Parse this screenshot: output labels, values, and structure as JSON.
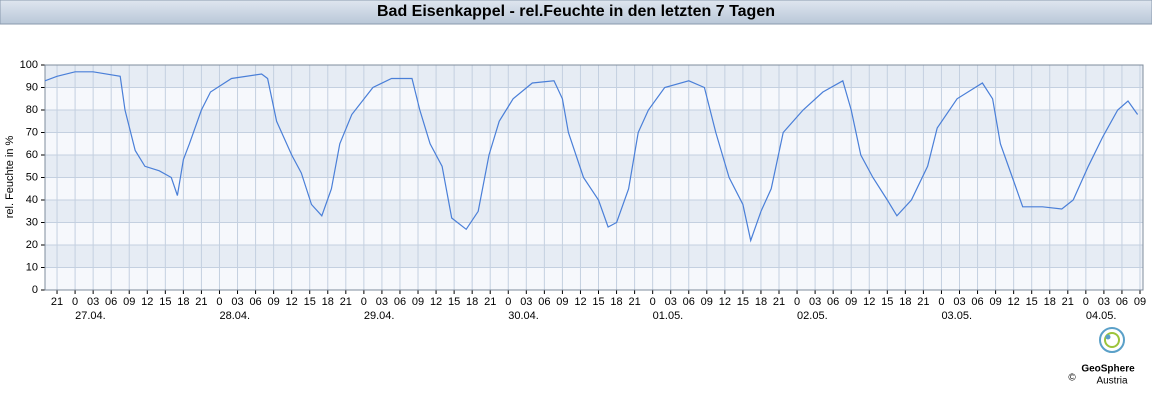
{
  "header": {
    "title": "Bad Eisenkappel - rel.Feuchte in den letzten 7 Tagen"
  },
  "chart_data": {
    "type": "line",
    "y_label": "rel. Feuchte in %",
    "xlim": [
      -5,
      177.5
    ],
    "ylim": [
      0,
      100
    ],
    "yticks": [
      0,
      10,
      20,
      30,
      40,
      50,
      60,
      70,
      80,
      90,
      100
    ],
    "xticks": [
      {
        "value": -3,
        "label": "21"
      },
      0,
      {
        "value": 3,
        "label": "03"
      },
      {
        "value": 6,
        "label": "06"
      },
      {
        "value": 9,
        "label": "09"
      },
      12,
      15,
      18,
      21,
      {
        "value": 24,
        "label": "0"
      },
      {
        "value": 27,
        "label": "03"
      },
      {
        "value": 30,
        "label": "06"
      },
      {
        "value": 33,
        "label": "09"
      },
      {
        "value": 36,
        "label": "12"
      },
      {
        "value": 39,
        "label": "15"
      },
      {
        "value": 42,
        "label": "18"
      },
      {
        "value": 45,
        "label": "21"
      },
      {
        "value": 48,
        "label": "0"
      },
      {
        "value": 51,
        "label": "03"
      },
      {
        "value": 54,
        "label": "06"
      },
      {
        "value": 57,
        "label": "09"
      },
      {
        "value": 60,
        "label": "12"
      },
      {
        "value": 63,
        "label": "15"
      },
      {
        "value": 66,
        "label": "18"
      },
      {
        "value": 69,
        "label": "21"
      },
      {
        "value": 72,
        "label": "0"
      },
      {
        "value": 75,
        "label": "03"
      },
      {
        "value": 78,
        "label": "06"
      },
      {
        "value": 81,
        "label": "09"
      },
      {
        "value": 84,
        "label": "12"
      },
      {
        "value": 87,
        "label": "15"
      },
      {
        "value": 90,
        "label": "18"
      },
      {
        "value": 93,
        "label": "21"
      },
      {
        "value": 96,
        "label": "0"
      },
      {
        "value": 99,
        "label": "03"
      },
      {
        "value": 102,
        "label": "06"
      },
      {
        "value": 105,
        "label": "09"
      },
      {
        "value": 108,
        "label": "12"
      },
      {
        "value": 111,
        "label": "15"
      },
      {
        "value": 114,
        "label": "18"
      },
      {
        "value": 117,
        "label": "21"
      },
      {
        "value": 120,
        "label": "0"
      },
      {
        "value": 123,
        "label": "03"
      },
      {
        "value": 126,
        "label": "06"
      },
      {
        "value": 129,
        "label": "09"
      },
      {
        "value": 132,
        "label": "12"
      },
      {
        "value": 135,
        "label": "15"
      },
      {
        "value": 138,
        "label": "18"
      },
      {
        "value": 141,
        "label": "21"
      },
      {
        "value": 144,
        "label": "0"
      },
      {
        "value": 147,
        "label": "03"
      },
      {
        "value": 150,
        "label": "06"
      },
      {
        "value": 153,
        "label": "09"
      },
      {
        "value": 156,
        "label": "12"
      },
      {
        "value": 159,
        "label": "15"
      },
      {
        "value": 162,
        "label": "18"
      },
      {
        "value": 165,
        "label": "21"
      },
      {
        "value": 168,
        "label": "0"
      },
      {
        "value": 171,
        "label": "03"
      },
      {
        "value": 174,
        "label": "06"
      },
      {
        "value": 177,
        "label": "09"
      }
    ],
    "date_labels": [
      {
        "value": 0,
        "label": "27.04."
      },
      {
        "value": 24,
        "label": "28.04."
      },
      {
        "value": 48,
        "label": "29.04."
      },
      {
        "value": 72,
        "label": "30.04."
      },
      {
        "value": 96,
        "label": "01.05."
      },
      {
        "value": 120,
        "label": "02.05."
      },
      {
        "value": 144,
        "label": "03.05."
      },
      {
        "value": 168,
        "label": "04.05."
      }
    ],
    "x": [
      -5,
      -3,
      0,
      3,
      7.5,
      8.3,
      10,
      11.6,
      14,
      16,
      17,
      18,
      19,
      21,
      22.5,
      26,
      31,
      32,
      33.5,
      36,
      37.6,
      39.3,
      41,
      42.6,
      44,
      46,
      49.5,
      52.6,
      56,
      57.3,
      59,
      61,
      62.6,
      65,
      67,
      68.8,
      70.5,
      72.8,
      76,
      79.6,
      81,
      82,
      84.5,
      87,
      88.6,
      90,
      92,
      93.6,
      95.3,
      98,
      102,
      104.6,
      106.5,
      108.7,
      111,
      112.3,
      114,
      115.7,
      117.7,
      121,
      124.3,
      127.6,
      129,
      130.6,
      132.6,
      135,
      136.6,
      139,
      141.7,
      143.3,
      146.6,
      150.8,
      152.5,
      153.8,
      155.8,
      157.5,
      160.8,
      164,
      165.9,
      168.4,
      170.8,
      173.3,
      175,
      176.6
    ],
    "series": [
      {
        "color": "#4a7fd8",
        "values": [
          93,
          95,
          97,
          97,
          95,
          80,
          62,
          55,
          53,
          50,
          42,
          58,
          65,
          80,
          88,
          94,
          96,
          94,
          75,
          60,
          52,
          38,
          33,
          45,
          65,
          78,
          90,
          94,
          94,
          80,
          65,
          55,
          32,
          27,
          35,
          60,
          75,
          85,
          92,
          93,
          85,
          70,
          50,
          40,
          28,
          30,
          45,
          70,
          80,
          90,
          93,
          90,
          70,
          50,
          38,
          22,
          35,
          45,
          70,
          80,
          88,
          93,
          80,
          60,
          50,
          40,
          33,
          40,
          55,
          72,
          85,
          92,
          85,
          65,
          50,
          37,
          37,
          36,
          40,
          55,
          68,
          80,
          84,
          78
        ]
      }
    ]
  },
  "footer": {
    "copyright": "©",
    "brand": "GeoSphere",
    "brand_sub": "Austria"
  }
}
